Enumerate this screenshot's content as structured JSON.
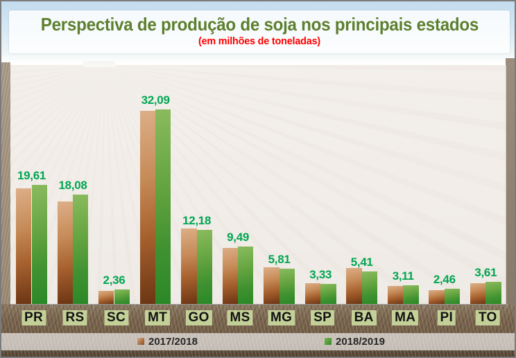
{
  "chart_data": {
    "type": "bar",
    "title": "Perspectiva de produção de soja nos principais estados",
    "subtitle": "(em milhões de toneladas)",
    "unit": "milhões de toneladas",
    "categories": [
      "PR",
      "RS",
      "SC",
      "MT",
      "GO",
      "MS",
      "MG",
      "SP",
      "BA",
      "MA",
      "PI",
      "TO"
    ],
    "series": [
      {
        "name": "2017/2018",
        "values": [
          19.1,
          16.9,
          2.2,
          31.9,
          12.5,
          9.2,
          6.0,
          3.4,
          5.9,
          3.0,
          2.3,
          3.4
        ],
        "data_labels_shown": false,
        "values_estimated_from_pixels": true
      },
      {
        "name": "2018/2019",
        "values": [
          19.61,
          18.08,
          2.36,
          32.09,
          12.18,
          9.49,
          5.81,
          3.33,
          5.41,
          3.11,
          2.46,
          3.61
        ],
        "data_labels": [
          "19,61",
          "18,08",
          "2,36",
          "32,09",
          "12,18",
          "9,49",
          "5,81",
          "3,33",
          "5,41",
          "3,11",
          "2,46",
          "3,61"
        ],
        "data_labels_shown": true
      }
    ],
    "value_axis": {
      "shown": false,
      "implied_range": [
        0,
        32.09
      ]
    },
    "gridlines": false,
    "legend_position": "bottom",
    "background": "photo of harvested soybean field (sky, field, dark soil strip)"
  },
  "colors": {
    "title_green": "#5D7F2E",
    "subtitle_red": "#FF0000",
    "value_label_green": "#00A651",
    "bar_2017_2018_top": "#DDAE87",
    "bar_2017_2018_bottom": "#6B3513",
    "bar_2018_2019_top": "#8ABB5E",
    "bar_2018_2019_bottom": "#2A8826",
    "axis_label_background": "#CBDCA0",
    "axis_line": "#9B9B9B",
    "legend_text": "#262626"
  }
}
